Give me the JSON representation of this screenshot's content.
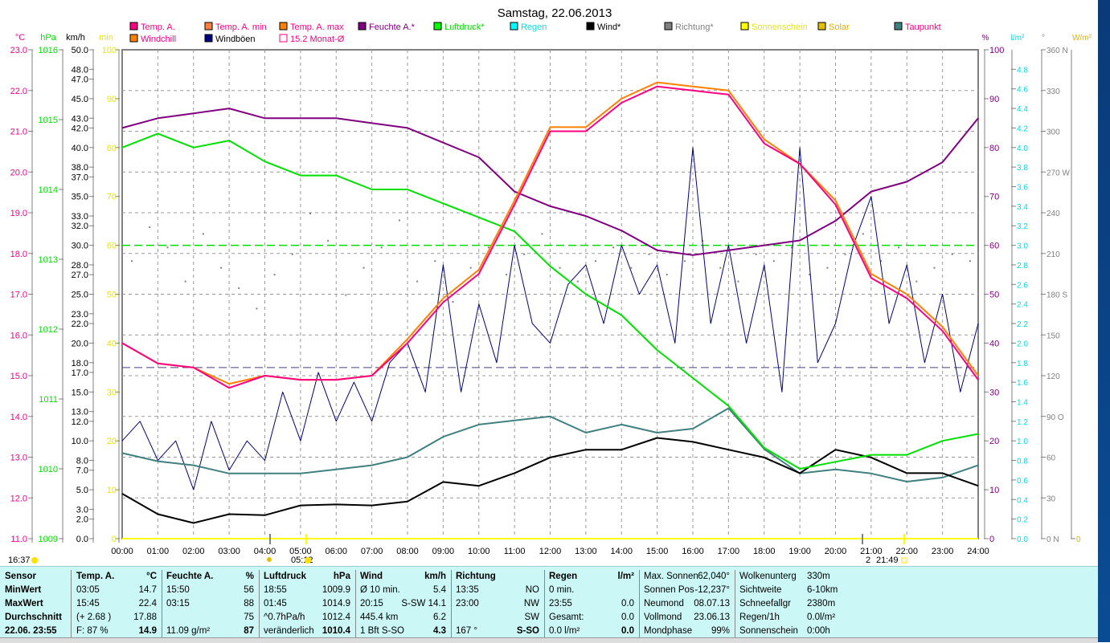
{
  "title": "Samstag, 22.06.2013",
  "legend": [
    {
      "label": "Temp. A.",
      "color": "#ff0080",
      "text": "#ff0080"
    },
    {
      "label": "Temp. A. min",
      "color": "#ff8040",
      "text": "#ff0080"
    },
    {
      "label": "Temp. A. max",
      "color": "#ff8000",
      "text": "#ff0080"
    },
    {
      "label": "Feuchte A.*",
      "color": "#800080",
      "text": "#800080"
    },
    {
      "label": "Luftdruck*",
      "color": "#00ff00",
      "text": "#00e000"
    },
    {
      "label": "Regen",
      "color": "#00ffff",
      "text": "#00e0e0"
    },
    {
      "label": "Wind*",
      "color": "#000000",
      "text": "#000000"
    },
    {
      "label": "Richtung*",
      "color": "#808080",
      "text": "#808080"
    },
    {
      "label": "Sonnenschein",
      "color": "#ffff00",
      "text": "#e8e800"
    },
    {
      "label": "Solar",
      "color": "#e0c000",
      "text": "#e0b000"
    },
    {
      "label": "Taupunkt",
      "color": "#408080",
      "text": "#ff0080"
    },
    {
      "label": "Windchill",
      "color": "#ff8000",
      "text": "#ff0080"
    },
    {
      "label": "Windböen",
      "color": "#000080",
      "text": "#000000"
    },
    {
      "label": "15.2 Monat-Ø",
      "color": "#ffffff",
      "text": "#ff0080"
    }
  ],
  "chart_data": {
    "type": "line",
    "title": "Samstag, 22.06.2013",
    "x_ticks": [
      "00:00",
      "01:00",
      "02:00",
      "03:00",
      "04:00",
      "05:00",
      "06:00",
      "07:00",
      "08:00",
      "09:00",
      "10:00",
      "11:00",
      "12:00",
      "13:00",
      "14:00",
      "15:00",
      "16:00",
      "17:00",
      "18:00",
      "19:00",
      "20:00",
      "21:00",
      "22:00",
      "23:00",
      "24:00"
    ],
    "x_range_hours": [
      0,
      24
    ],
    "axes": {
      "temp": {
        "unit": "°C",
        "range": [
          11,
          23
        ],
        "color": "#ff0080",
        "ticks": [
          "23.0",
          "22.0",
          "21.0",
          "20.0",
          "19.0",
          "18.0",
          "17.0",
          "16.0",
          "15.0",
          "14.0",
          "13.0",
          "12.0",
          "11.0"
        ]
      },
      "pressure": {
        "unit": "hPa",
        "range": [
          1009,
          1016
        ],
        "color": "#00e000",
        "ticks": [
          "1016",
          "1015",
          "1014",
          "1013",
          "1012",
          "1011",
          "1010",
          "1009"
        ]
      },
      "wind": {
        "unit": "km/h",
        "range": [
          0,
          50
        ],
        "color": "#000000",
        "ticks": [
          "50.0",
          "48.0",
          "47.0",
          "45.0",
          "43.0",
          "42.0",
          "40.0",
          "38.0",
          "37.0",
          "35.0",
          "33.0",
          "32.0",
          "30.0",
          "28.0",
          "27.0",
          "25.0",
          "23.0",
          "22.0",
          "20.0",
          "18.0",
          "17.0",
          "15.0",
          "13.0",
          "12.0",
          "10.0",
          "8.0",
          "7.0",
          "5.0",
          "3.0",
          "2.0",
          "0.0"
        ]
      },
      "sun": {
        "unit": "min",
        "range": [
          0,
          100
        ],
        "color": "#e8e800",
        "ticks": [
          "100",
          "90",
          "80",
          "70",
          "60",
          "50",
          "40",
          "30",
          "20",
          "10",
          "0"
        ]
      },
      "humidity": {
        "unit": "%",
        "range": [
          0,
          100
        ],
        "color": "#800080",
        "ticks": [
          "100",
          "90",
          "80",
          "70",
          "60",
          "50",
          "40",
          "30",
          "20",
          "10",
          "0"
        ]
      },
      "rain": {
        "unit": "l/m²",
        "range": [
          0,
          5
        ],
        "color": "#00e0e0",
        "ticks": [
          "4.8",
          "4.6",
          "4.4",
          "4.2",
          "4.0",
          "3.8",
          "3.6",
          "3.4",
          "3.2",
          "3.0",
          "2.8",
          "2.6",
          "2.4",
          "2.2",
          "2.0",
          "1.8",
          "1.6",
          "1.4",
          "1.2",
          "1.0",
          "0.8",
          "0.6",
          "0.4",
          "0.2",
          "0.0"
        ]
      },
      "direction": {
        "unit": "°",
        "range": [
          0,
          360
        ],
        "color": "#808080",
        "ticks": [
          "360 N",
          "330",
          "300",
          "270 W",
          "240",
          "210",
          "180 S",
          "150",
          "120",
          "90  O",
          "60",
          "30",
          "0    N"
        ]
      },
      "solar": {
        "unit": "W/m²",
        "range": [
          0,
          1
        ],
        "color": "#e0b000",
        "ticks": [
          "0"
        ]
      }
    },
    "series": [
      {
        "name": "Temp. A.",
        "axis": "temp",
        "color": "#ff0080",
        "step_hours": 1,
        "values": [
          15.8,
          15.3,
          15.2,
          14.7,
          15.0,
          14.9,
          14.9,
          15.0,
          15.8,
          16.8,
          17.5,
          19.2,
          21.0,
          21.0,
          21.7,
          22.1,
          22.0,
          21.9,
          20.7,
          20.2,
          19.2,
          17.4,
          16.9,
          16.1,
          14.9
        ]
      },
      {
        "name": "Temp. A. max",
        "axis": "temp",
        "color": "#ff8000",
        "step_hours": 1,
        "values": [
          15.8,
          15.3,
          15.2,
          14.8,
          15.0,
          14.9,
          14.9,
          15.0,
          15.9,
          16.9,
          17.6,
          19.3,
          21.1,
          21.1,
          21.8,
          22.2,
          22.1,
          22.0,
          20.8,
          20.2,
          19.3,
          17.5,
          17.0,
          16.2,
          15.0
        ]
      },
      {
        "name": "Feuchte A.*",
        "axis": "humidity",
        "color": "#800080",
        "step_hours": 1,
        "values": [
          84,
          86,
          87,
          88,
          86,
          86,
          86,
          85,
          84,
          81,
          78,
          71,
          68,
          66,
          63,
          59,
          58,
          59,
          60,
          61,
          65,
          71,
          73,
          77,
          86
        ]
      },
      {
        "name": "Luftdruck*",
        "axis": "pressure",
        "color": "#00e000",
        "step_hours": 1,
        "values": [
          1014.6,
          1014.8,
          1014.6,
          1014.7,
          1014.4,
          1014.2,
          1014.2,
          1014.0,
          1014.0,
          1013.8,
          1013.6,
          1013.4,
          1012.9,
          1012.5,
          1012.2,
          1011.7,
          1011.3,
          1010.9,
          1010.3,
          1010.0,
          1010.1,
          1010.2,
          1010.2,
          1010.4,
          1010.5
        ]
      },
      {
        "name": "Taupunkt",
        "axis": "temp",
        "color": "#408080",
        "step_hours": 1,
        "values": [
          13.1,
          12.9,
          12.8,
          12.6,
          12.6,
          12.6,
          12.7,
          12.8,
          13.0,
          13.5,
          13.8,
          13.9,
          14.0,
          13.6,
          13.8,
          13.6,
          13.7,
          14.2,
          13.2,
          12.6,
          12.7,
          12.6,
          12.4,
          12.5,
          12.8
        ]
      },
      {
        "name": "Wind*",
        "axis": "wind",
        "color": "#000000",
        "step_hours": 1,
        "values": [
          4.6,
          2.5,
          1.6,
          2.5,
          2.4,
          3.4,
          3.5,
          3.4,
          3.8,
          5.8,
          5.4,
          6.7,
          8.3,
          9.1,
          9.1,
          10.3,
          9.9,
          9.1,
          8.3,
          6.7,
          9.1,
          8.3,
          6.7,
          6.7,
          5.4
        ]
      },
      {
        "name": "Windböen",
        "axis": "wind",
        "color": "#000080",
        "step_hours": 0.5,
        "values": [
          10,
          12,
          8,
          10,
          5,
          12,
          7,
          10,
          8,
          15,
          10,
          17,
          12,
          16,
          12,
          18,
          20,
          15,
          28,
          15,
          24,
          18,
          30,
          22,
          20,
          26,
          28,
          22,
          30,
          25,
          28,
          20,
          40,
          22,
          30,
          20,
          28,
          15,
          40,
          18,
          22,
          30,
          35,
          22,
          28,
          18,
          25,
          15,
          22
        ]
      },
      {
        "name": "Regen",
        "axis": "rain",
        "color": "#00e0e0",
        "step_hours": 24,
        "values": [
          0,
          0
        ]
      },
      {
        "name": "Sonnenschein",
        "axis": "sun",
        "color": "#ffff00",
        "step_hours": 24,
        "values": [
          0,
          0
        ]
      }
    ],
    "direction_points": {
      "name": "Richtung*",
      "axis": "direction",
      "color": "#808080",
      "step_hours": 0.5,
      "values": [
        205,
        230,
        215,
        190,
        225,
        200,
        185,
        170,
        195,
        210,
        240,
        220,
        180,
        200,
        215,
        235,
        190,
        205,
        175,
        200,
        215,
        195,
        210,
        225,
        200,
        190,
        205,
        215,
        200,
        210,
        195,
        205,
        220,
        200,
        190,
        210,
        205,
        215,
        195,
        200,
        210,
        225,
        205,
        215,
        190,
        200,
        210,
        205
      ]
    },
    "reference_lines": [
      {
        "name": "15.2 Monat-Ø",
        "axis": "temp",
        "value": 15.2,
        "color": "#404080"
      },
      {
        "name": "Normaldruck",
        "axis": "pressure",
        "value": 1013.2,
        "color": "#00e000"
      }
    ],
    "grid": true
  },
  "time_markers": {
    "left": "16:37",
    "sunrise": "05:12",
    "sunset": "21:49",
    "moon_prefix": "2"
  },
  "table": {
    "sensor": {
      "head": "Sensor",
      "rows": [
        "MinWert",
        "MaxWert",
        "Durchschnitt",
        "22.06. 23:55"
      ]
    },
    "temp": {
      "head": "Temp. A.",
      "unit": "°C",
      "rows": [
        [
          "03:05",
          "14.7"
        ],
        [
          "15:45",
          "22.4"
        ],
        [
          "(+ 2.68 )",
          "17.88"
        ],
        [
          "F: 87 %",
          "14.9"
        ]
      ]
    },
    "hum": {
      "head": "Feuchte A.",
      "unit": "%",
      "rows": [
        [
          "15:50",
          "56"
        ],
        [
          "03:15",
          "88"
        ],
        [
          "",
          "75"
        ],
        [
          "11.09 g/m²",
          "87"
        ]
      ]
    },
    "press": {
      "head": "Luftdruck",
      "unit": "hPa",
      "rows": [
        [
          "18:55",
          "1009.9"
        ],
        [
          "01:45",
          "1014.9"
        ],
        [
          "^0.7hPa/h",
          "1012.4"
        ],
        [
          "veränderlich",
          "1010.4"
        ]
      ]
    },
    "wind": {
      "head": "Wind",
      "unit": "km/h",
      "rows": [
        [
          "Ø 10 min.",
          "5.4"
        ],
        [
          "20:15",
          "S-SW 14.1"
        ],
        [
          "445.4 km",
          "6.2"
        ],
        [
          "1 Bft S-SO",
          "4.3"
        ]
      ]
    },
    "dir": {
      "head": "Richtung",
      "unit": "",
      "rows": [
        [
          "13:35",
          "NO"
        ],
        [
          "23:00",
          "NW"
        ],
        [
          "",
          "SW"
        ],
        [
          "167 °",
          "S-SO"
        ]
      ]
    },
    "rain": {
      "head": "Regen",
      "unit": "l/m²",
      "rows": [
        [
          "0 min.",
          ""
        ],
        [
          "23:55",
          "0.0"
        ],
        [
          "Gesamt:",
          "0.0"
        ],
        [
          "0.0 l/m²",
          "0.0"
        ]
      ]
    },
    "astro": {
      "rows": [
        [
          "Max. Sonnen",
          "62,040°"
        ],
        [
          "Sonnen Pos",
          "-12,237°"
        ],
        [
          "Neumond",
          "08.07.13"
        ],
        [
          "Vollmond",
          "23.06.13"
        ],
        [
          "Mondphase",
          "99%"
        ]
      ]
    },
    "misc": {
      "rows": [
        [
          "Wolkenunterg",
          "330m"
        ],
        [
          "Sichtweite",
          "6-10km"
        ],
        [
          "Schneefallgr",
          "2380m"
        ],
        [
          "Regen/1h",
          "0.0l/m²"
        ],
        [
          "Sonnenschein",
          "0:00h"
        ]
      ]
    }
  }
}
